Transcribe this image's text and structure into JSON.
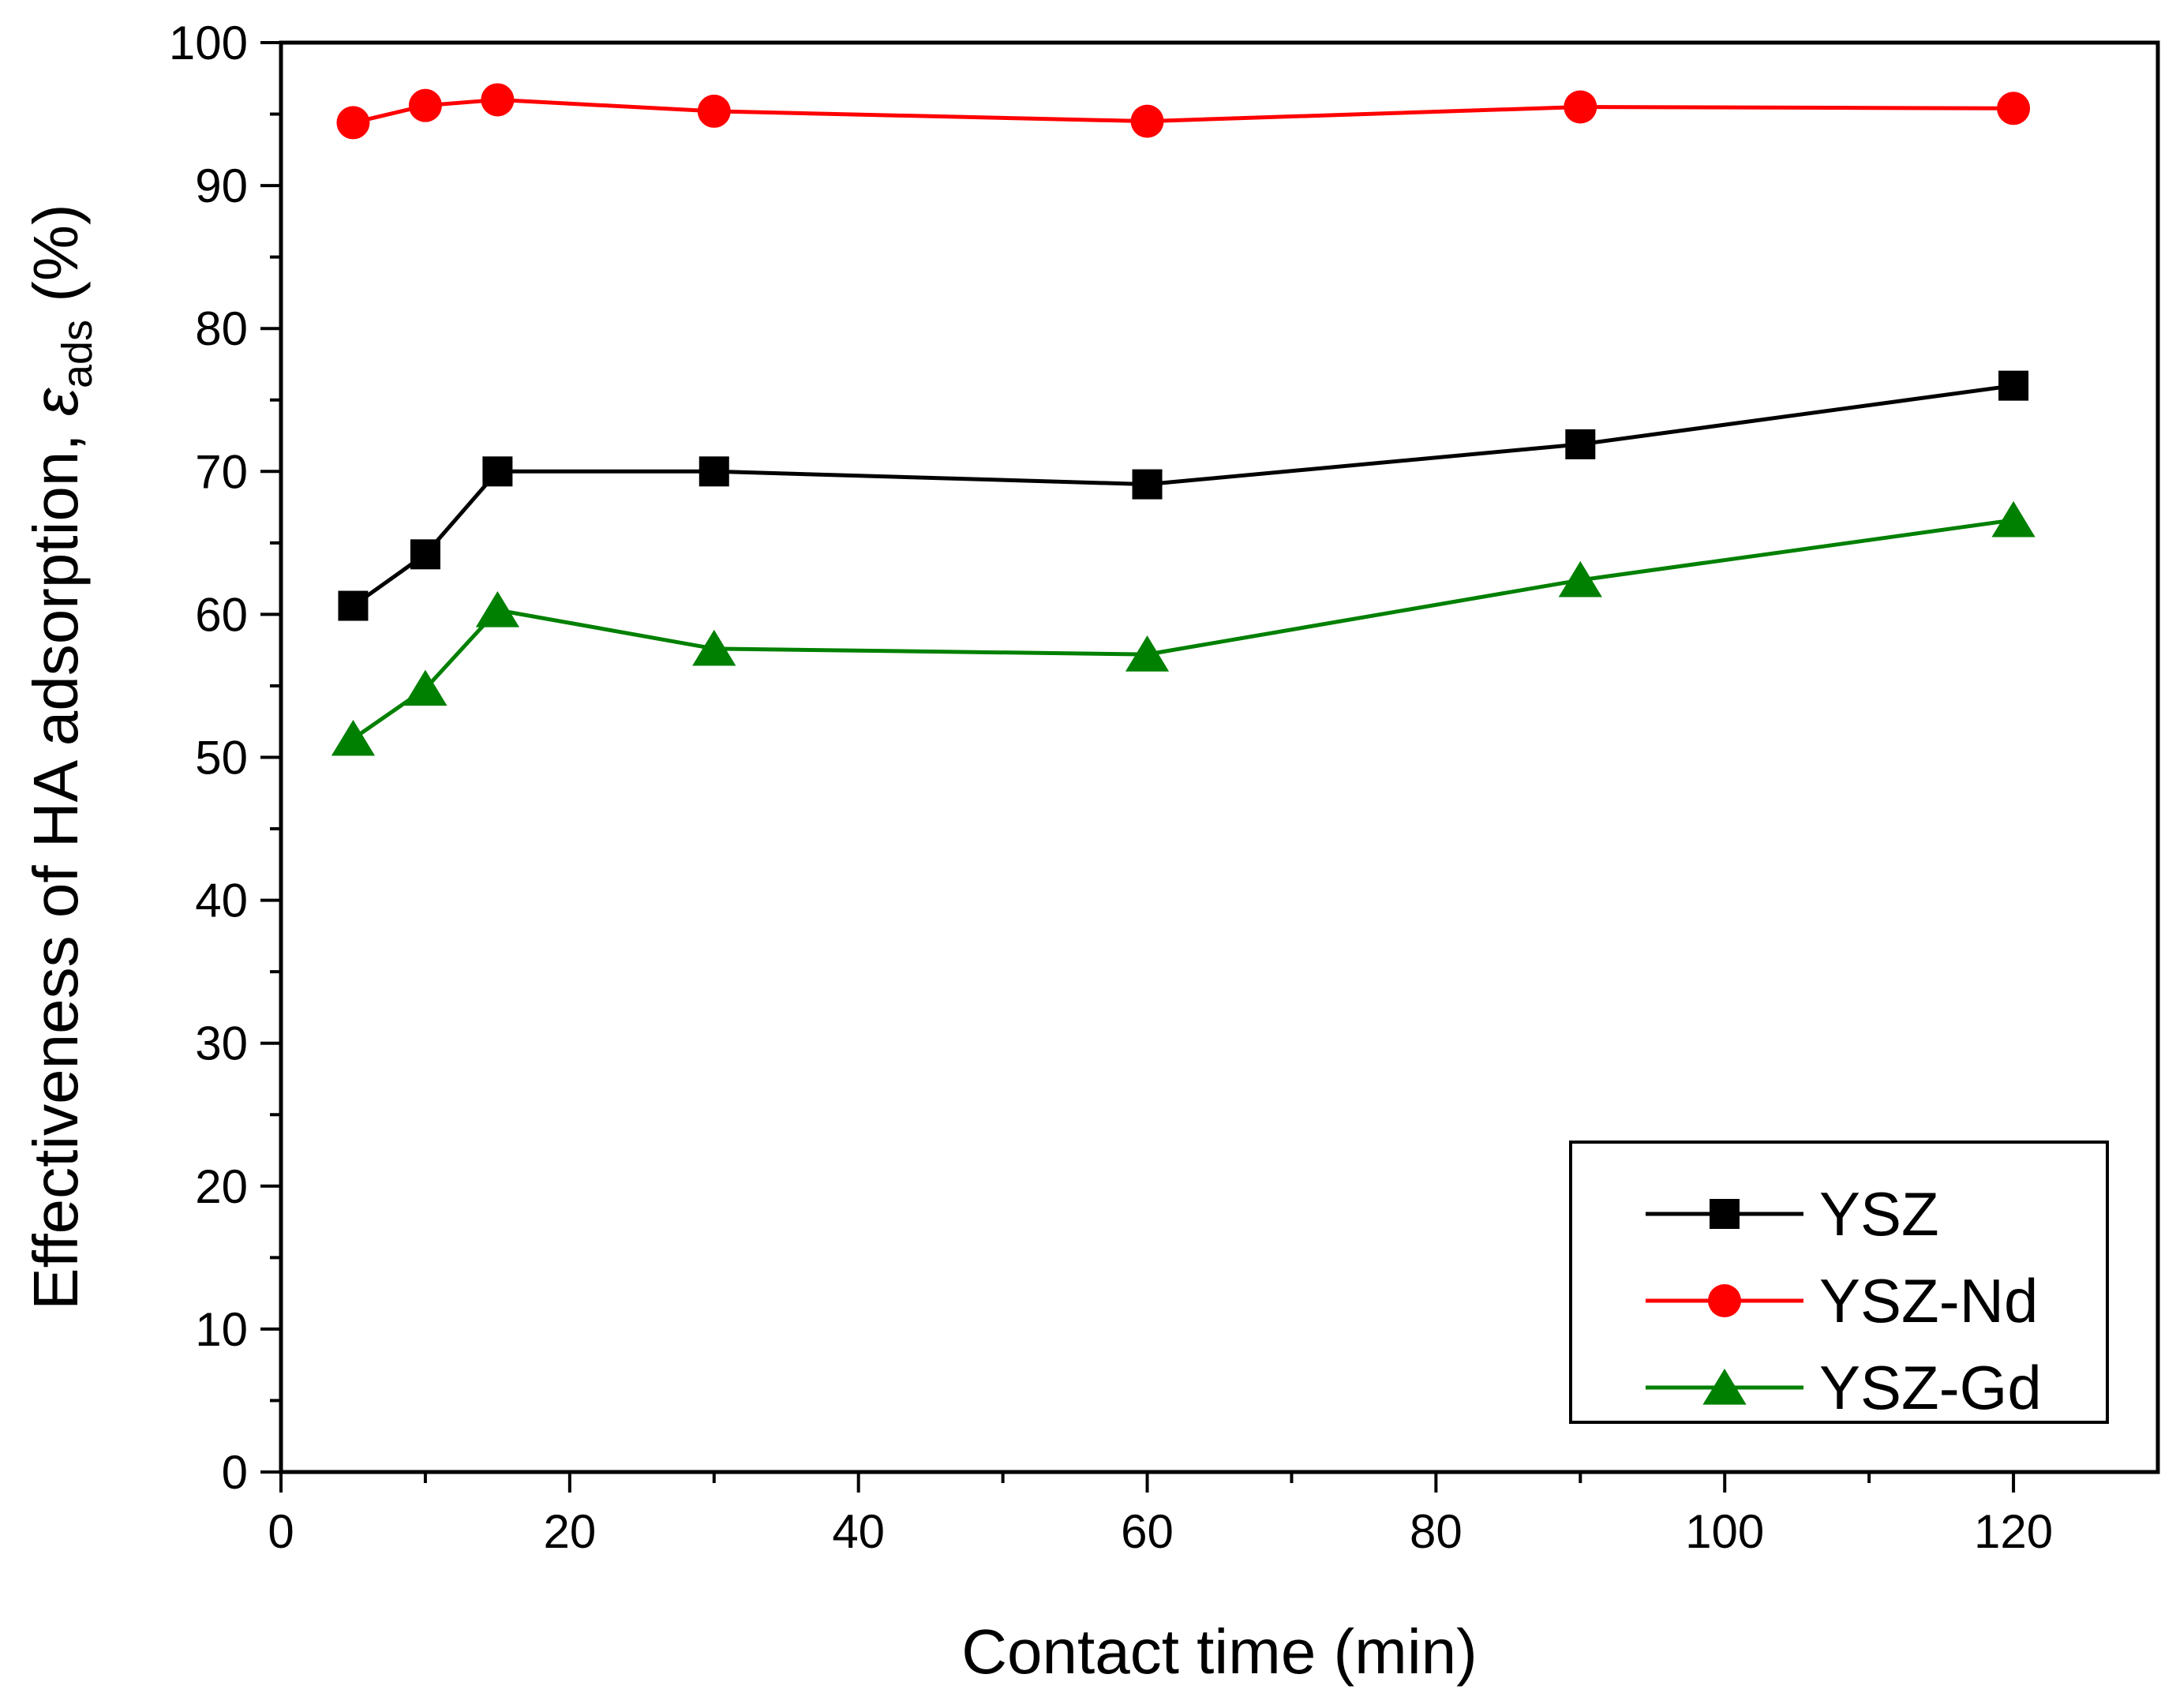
{
  "chart_data": {
    "type": "line",
    "title": "",
    "xlabel": "Contact time (min)",
    "ylabel": {
      "main": "Effectiveness of HA adsorption, ",
      "symbol": "ε",
      "subscript": "ads",
      "unit": " (%)"
    },
    "xlim": [
      0,
      130
    ],
    "ylim": [
      0,
      100
    ],
    "x_ticks": [
      0,
      20,
      40,
      60,
      80,
      100,
      120
    ],
    "x_tick_labels": [
      "0",
      "20",
      "40",
      "60",
      "80",
      "100",
      "120"
    ],
    "y_ticks": [
      0,
      10,
      20,
      30,
      40,
      50,
      60,
      70,
      80,
      90,
      100
    ],
    "y_tick_labels": [
      "0",
      "10",
      "20",
      "30",
      "40",
      "50",
      "60",
      "70",
      "80",
      "90",
      "100"
    ],
    "grid": false,
    "legend_position": "bottom-right",
    "x": [
      5,
      10,
      15,
      30,
      60,
      90,
      120
    ],
    "series": [
      {
        "name": "YSZ",
        "marker": "square",
        "color": "#000000",
        "values": [
          60.6,
          64.2,
          70.0,
          70.0,
          69.1,
          71.9,
          76.0
        ]
      },
      {
        "name": "YSZ-Nd",
        "marker": "circle",
        "color": "#ff0000",
        "values": [
          94.4,
          95.6,
          96.0,
          95.2,
          94.5,
          95.5,
          95.4
        ]
      },
      {
        "name": "YSZ-Gd",
        "marker": "triangle",
        "color": "#008000",
        "values": [
          51.3,
          54.8,
          60.3,
          57.6,
          57.2,
          62.4,
          66.6
        ]
      }
    ]
  }
}
